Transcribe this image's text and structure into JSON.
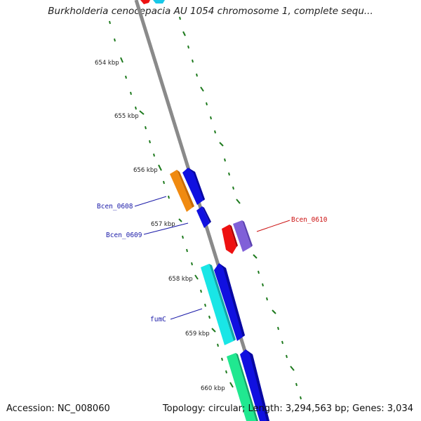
{
  "title": "Burkholderia cenocepacia AU 1054 chromosome 1, complete sequ...",
  "footer": {
    "accession": "Accession: NC_008060",
    "summary": "Topology: circular; Length: 3,294,563 bp; Genes: 3,034"
  },
  "scale_labels": [
    "654 kbp",
    "655 kbp",
    "656 kbp",
    "657 kbp",
    "658 kbp",
    "659 kbp",
    "660 kbp"
  ],
  "gene_labels": [
    {
      "text": "Bcen_0608",
      "color": "#1a1aa8"
    },
    {
      "text": "Bcen_0609",
      "color": "#1a1aa8"
    },
    {
      "text": "fumC",
      "color": "#1a1aa8"
    },
    {
      "text": "Bcen_0610",
      "color": "#cc1111"
    }
  ],
  "colors": {
    "backbone": "#808080",
    "ticks": "#1e7a1e",
    "orange": "#f08a10",
    "blue": "#1010e0",
    "cyan": "#19e6e6",
    "red": "#ee1111",
    "purple": "#8060d8",
    "green": "#20e890"
  }
}
